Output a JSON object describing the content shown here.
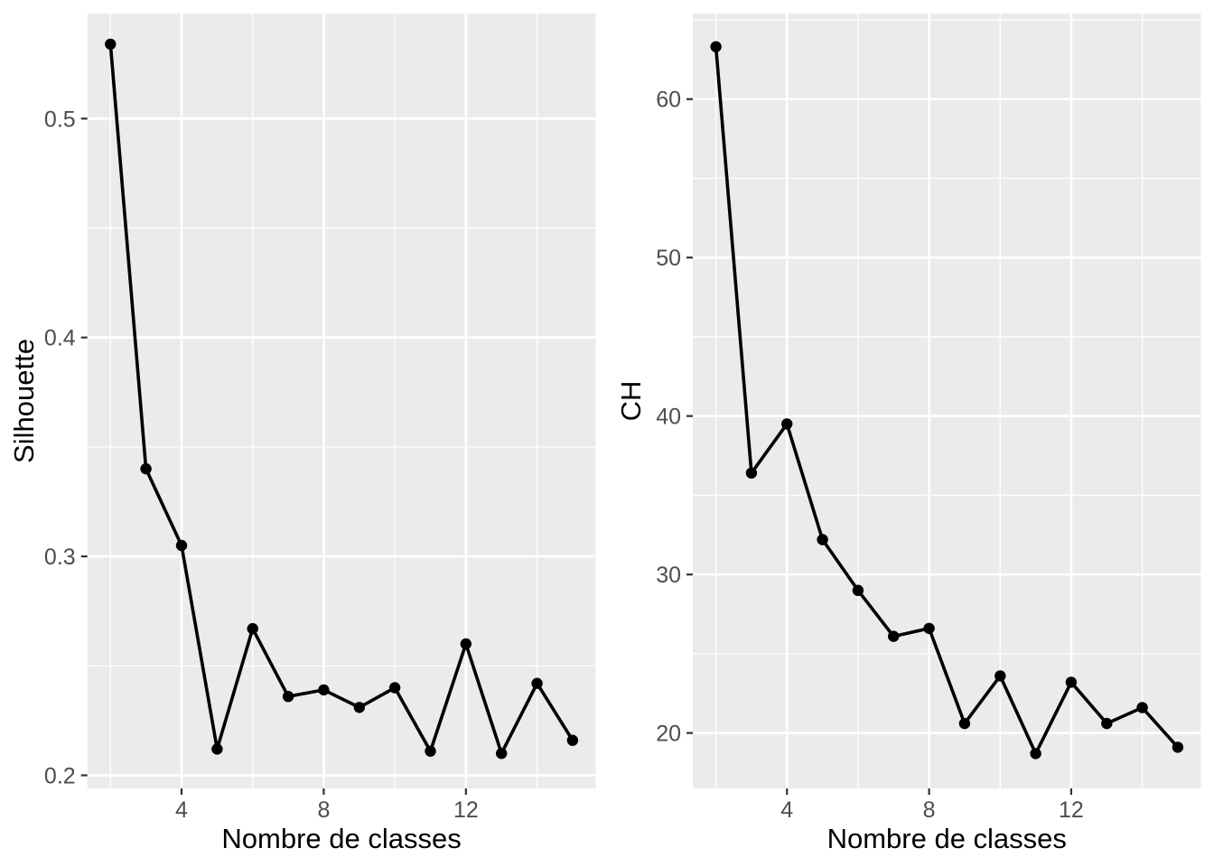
{
  "figure": {
    "description": "Two ggplot2-style diagnostic line charts of clustering quality indices versus number of classes",
    "background": "#FFFFFF"
  },
  "style": {
    "panel_bg": "#EBEBEB",
    "gridline": "#FFFFFF",
    "line": "#000000",
    "point": "#000000",
    "axis_text": "#4D4D4D",
    "axis_title": "#000000",
    "tick_mark": "#333333"
  },
  "chart_data": [
    {
      "type": "line",
      "title": "",
      "xlabel": "Nombre de classes",
      "ylabel": "Silhouette",
      "x": [
        2,
        3,
        4,
        5,
        6,
        7,
        8,
        9,
        10,
        11,
        12,
        13,
        14,
        15
      ],
      "y": [
        0.534,
        0.34,
        0.305,
        0.212,
        0.267,
        0.236,
        0.239,
        0.231,
        0.24,
        0.211,
        0.26,
        0.21,
        0.242,
        0.216
      ],
      "xlim": [
        1.35,
        15.65
      ],
      "ylim": [
        0.194,
        0.548
      ],
      "x_major_ticks": [
        4,
        8,
        12
      ],
      "x_tick_labels": [
        "4",
        "8",
        "12"
      ],
      "x_minor_ticks": [
        2,
        6,
        10,
        14
      ],
      "y_major_ticks": [
        0.2,
        0.3,
        0.4,
        0.5
      ],
      "y_tick_labels": [
        "0.2",
        "0.3",
        "0.4",
        "0.5"
      ],
      "y_minor_ticks": [
        0.25,
        0.35,
        0.45
      ],
      "grid": true,
      "legend_position": "none",
      "marker": "point"
    },
    {
      "type": "line",
      "title": "",
      "xlabel": "Nombre de classes",
      "ylabel": "CH",
      "x": [
        2,
        3,
        4,
        5,
        6,
        7,
        8,
        9,
        10,
        11,
        12,
        13,
        14,
        15
      ],
      "y": [
        63.3,
        36.4,
        39.5,
        32.2,
        29.0,
        26.1,
        26.6,
        20.6,
        23.6,
        18.7,
        23.2,
        20.6,
        21.6,
        19.1
      ],
      "xlim": [
        1.35,
        15.65
      ],
      "ylim": [
        16.5,
        65.4
      ],
      "x_major_ticks": [
        4,
        8,
        12
      ],
      "x_tick_labels": [
        "4",
        "8",
        "12"
      ],
      "x_minor_ticks": [
        2,
        6,
        10,
        14
      ],
      "y_major_ticks": [
        20,
        30,
        40,
        50,
        60
      ],
      "y_tick_labels": [
        "20",
        "30",
        "40",
        "50",
        "60"
      ],
      "y_minor_ticks": [
        25,
        35,
        45,
        55,
        65
      ],
      "grid": true,
      "legend_position": "none",
      "marker": "point"
    }
  ]
}
